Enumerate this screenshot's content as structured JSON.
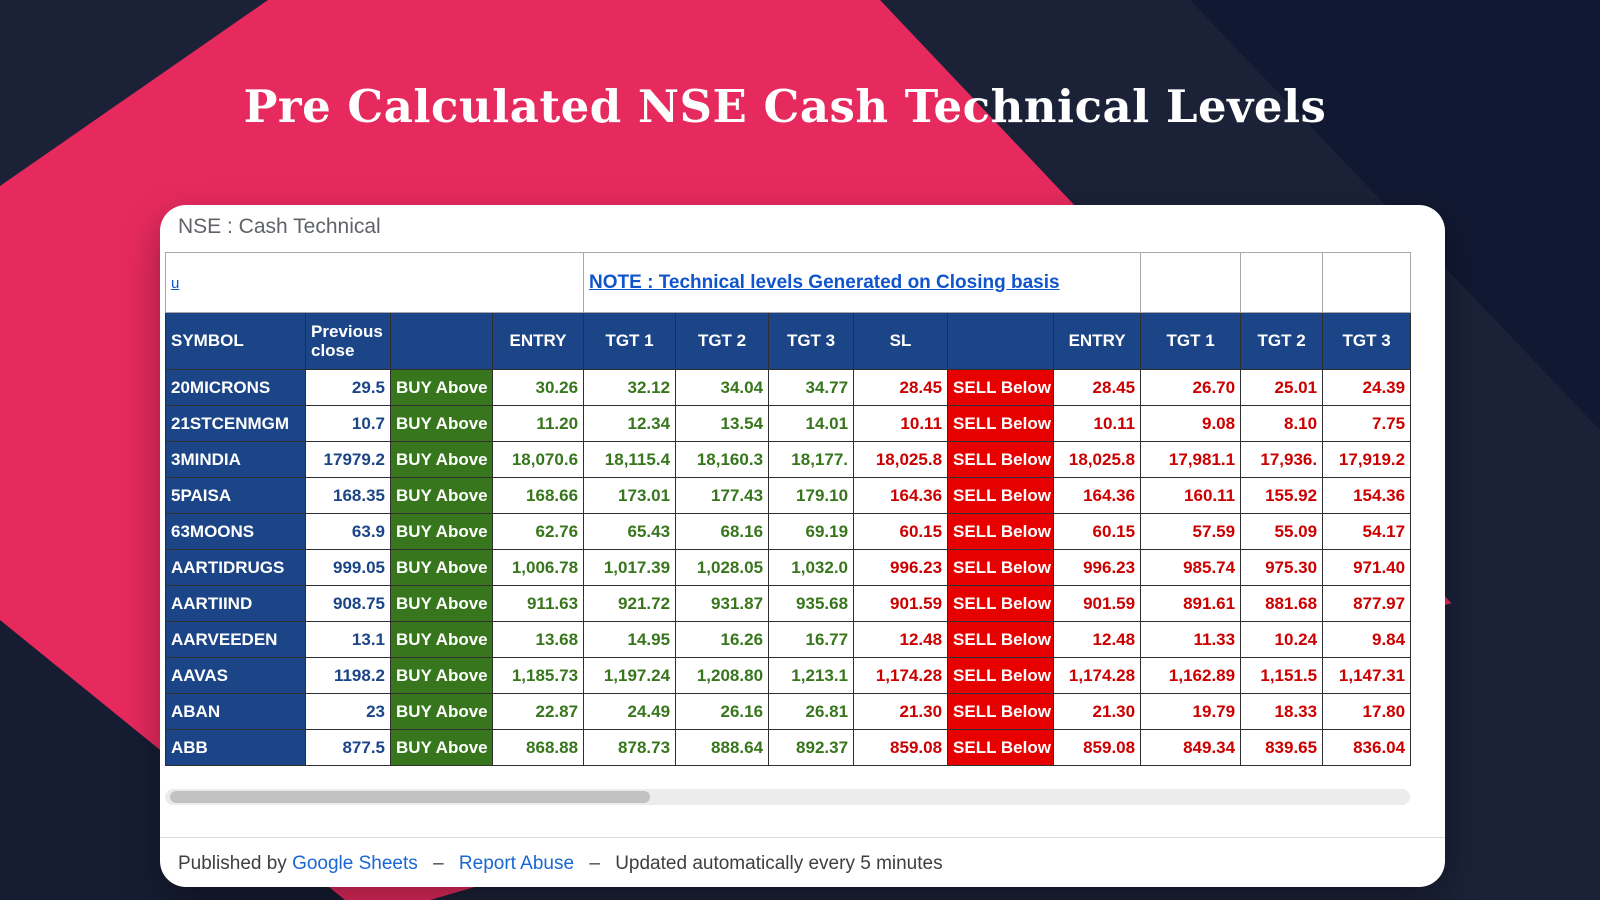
{
  "page": {
    "title": "Pre Calculated NSE Cash Technical Levels"
  },
  "card": {
    "window_title": "NSE : Cash Technical",
    "corner_link": "u",
    "note": "NOTE : Technical levels Generated on Closing basis",
    "footer": {
      "prefix": "Published by",
      "link1": "Google Sheets",
      "sep1": "–",
      "link2": "Report Abuse",
      "sep2": "–",
      "suffix": "Updated automatically every 5 minutes"
    }
  },
  "table": {
    "headers": [
      "SYMBOL",
      "Previous close",
      "",
      "ENTRY",
      "TGT 1",
      "TGT 2",
      "TGT 3",
      "SL",
      "",
      "ENTRY",
      "TGT 1",
      "TGT 2",
      "TGT 3"
    ],
    "buy_label": "BUY Above",
    "sell_label": "SELL Below",
    "rows": [
      {
        "symbol": "20MICRONS",
        "prev_close": "29.5",
        "entry": "30.26",
        "tgt1": "32.12",
        "tgt2": "34.04",
        "tgt3": "34.77",
        "sl": "28.45",
        "sell_entry": "28.45",
        "sell_tgt1": "26.70",
        "sell_tgt2": "25.01",
        "sell_tgt3": "24.39"
      },
      {
        "symbol": "21STCENMGM",
        "prev_close": "10.7",
        "entry": "11.20",
        "tgt1": "12.34",
        "tgt2": "13.54",
        "tgt3": "14.01",
        "sl": "10.11",
        "sell_entry": "10.11",
        "sell_tgt1": "9.08",
        "sell_tgt2": "8.10",
        "sell_tgt3": "7.75"
      },
      {
        "symbol": "3MINDIA",
        "prev_close": "17979.2",
        "entry": "18,070.6",
        "tgt1": "18,115.4",
        "tgt2": "18,160.3",
        "tgt3": "18,177.",
        "sl": "18,025.8",
        "sell_entry": "18,025.8",
        "sell_tgt1": "17,981.1",
        "sell_tgt2": "17,936.",
        "sell_tgt3": "17,919.2"
      },
      {
        "symbol": "5PAISA",
        "prev_close": "168.35",
        "entry": "168.66",
        "tgt1": "173.01",
        "tgt2": "177.43",
        "tgt3": "179.10",
        "sl": "164.36",
        "sell_entry": "164.36",
        "sell_tgt1": "160.11",
        "sell_tgt2": "155.92",
        "sell_tgt3": "154.36"
      },
      {
        "symbol": "63MOONS",
        "prev_close": "63.9",
        "entry": "62.76",
        "tgt1": "65.43",
        "tgt2": "68.16",
        "tgt3": "69.19",
        "sl": "60.15",
        "sell_entry": "60.15",
        "sell_tgt1": "57.59",
        "sell_tgt2": "55.09",
        "sell_tgt3": "54.17"
      },
      {
        "symbol": "AARTIDRUGS",
        "prev_close": "999.05",
        "entry": "1,006.78",
        "tgt1": "1,017.39",
        "tgt2": "1,028.05",
        "tgt3": "1,032.0",
        "sl": "996.23",
        "sell_entry": "996.23",
        "sell_tgt1": "985.74",
        "sell_tgt2": "975.30",
        "sell_tgt3": "971.40"
      },
      {
        "symbol": "AARTIIND",
        "prev_close": "908.75",
        "entry": "911.63",
        "tgt1": "921.72",
        "tgt2": "931.87",
        "tgt3": "935.68",
        "sl": "901.59",
        "sell_entry": "901.59",
        "sell_tgt1": "891.61",
        "sell_tgt2": "881.68",
        "sell_tgt3": "877.97"
      },
      {
        "symbol": "AARVEEDEN",
        "prev_close": "13.1",
        "entry": "13.68",
        "tgt1": "14.95",
        "tgt2": "16.26",
        "tgt3": "16.77",
        "sl": "12.48",
        "sell_entry": "12.48",
        "sell_tgt1": "11.33",
        "sell_tgt2": "10.24",
        "sell_tgt3": "9.84"
      },
      {
        "symbol": "AAVAS",
        "prev_close": "1198.2",
        "entry": "1,185.73",
        "tgt1": "1,197.24",
        "tgt2": "1,208.80",
        "tgt3": "1,213.1",
        "sl": "1,174.28",
        "sell_entry": "1,174.28",
        "sell_tgt1": "1,162.89",
        "sell_tgt2": "1,151.5",
        "sell_tgt3": "1,147.31"
      },
      {
        "symbol": "ABAN",
        "prev_close": "23",
        "entry": "22.87",
        "tgt1": "24.49",
        "tgt2": "26.16",
        "tgt3": "26.81",
        "sl": "21.30",
        "sell_entry": "21.30",
        "sell_tgt1": "19.79",
        "sell_tgt2": "18.33",
        "sell_tgt3": "17.80"
      },
      {
        "symbol": "ABB",
        "prev_close": "877.5",
        "entry": "868.88",
        "tgt1": "878.73",
        "tgt2": "888.64",
        "tgt3": "892.37",
        "sl": "859.08",
        "sell_entry": "859.08",
        "sell_tgt1": "849.34",
        "sell_tgt2": "839.65",
        "sell_tgt3": "836.04"
      }
    ]
  },
  "colors": {
    "background_pink": "#e72a5e",
    "background_navy": "#1b2238",
    "background_navy_dark": "#111831",
    "header_blue": "#1c4587",
    "buy_green": "#38761d",
    "sell_red_bg": "#e60000",
    "sell_red_text": "#cc0000",
    "link_blue": "#1155cc"
  }
}
